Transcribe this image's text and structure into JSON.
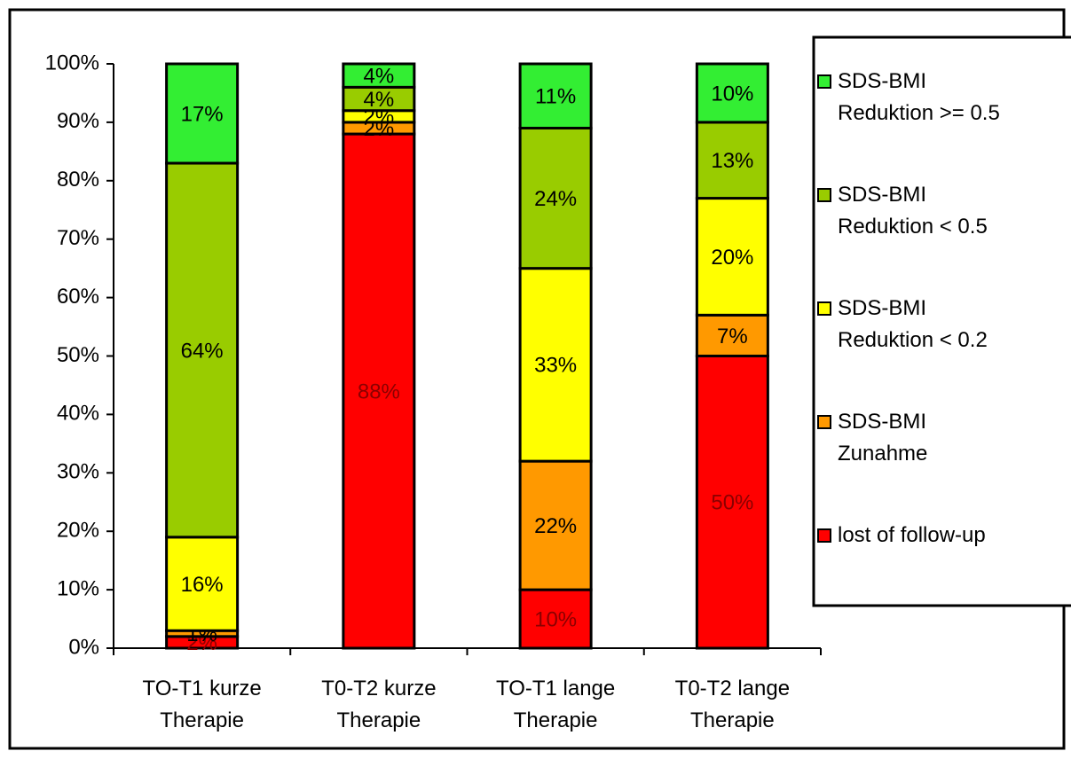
{
  "chart_data": {
    "type": "stacked_bar",
    "categories": [
      "TO-T1 kurze Therapie",
      "T0-T2 kurze Therapie",
      "TO-T1 lange Therapie",
      "T0-T2 lange Therapie"
    ],
    "series": [
      {
        "name": "lost of follow-up",
        "color": "#ff0000",
        "label_color": "#8b0000",
        "values": [
          2,
          88,
          10,
          50
        ],
        "value_labels": [
          "2%",
          "88%",
          "10%",
          "50%"
        ]
      },
      {
        "name": "SDS-BMI Zunahme",
        "color": "#ff9900",
        "label_color": "#000000",
        "values": [
          1,
          2,
          22,
          7
        ],
        "value_labels": [
          "1%",
          "2%",
          "22%",
          "7%"
        ]
      },
      {
        "name": "SDS-BMI Reduktion < 0.2",
        "color": "#ffff00",
        "label_color": "#000000",
        "values": [
          16,
          2,
          33,
          20
        ],
        "value_labels": [
          "16%",
          "2%",
          "33%",
          "20%"
        ]
      },
      {
        "name": "SDS-BMI Reduktion < 0.5",
        "color": "#99cc00",
        "label_color": "#000000",
        "values": [
          64,
          4,
          24,
          13
        ],
        "value_labels": [
          "64%",
          "4%",
          "24%",
          "13%"
        ]
      },
      {
        "name": "SDS-BMI Reduktion >= 0.5",
        "color": "#33ee33",
        "label_color": "#000000",
        "values": [
          17,
          4,
          11,
          10
        ],
        "value_labels": [
          "17%",
          "4%",
          "11%",
          "10%"
        ]
      }
    ],
    "ylim": [
      0,
      100
    ],
    "yticks": [
      {
        "value": 0,
        "label": "0%"
      },
      {
        "value": 10,
        "label": "10%"
      },
      {
        "value": 20,
        "label": "20%"
      },
      {
        "value": 30,
        "label": "30%"
      },
      {
        "value": 40,
        "label": "40%"
      },
      {
        "value": 50,
        "label": "50%"
      },
      {
        "value": 60,
        "label": "60%"
      },
      {
        "value": 70,
        "label": "70%"
      },
      {
        "value": 80,
        "label": "80%"
      },
      {
        "value": 90,
        "label": "90%"
      },
      {
        "value": 100,
        "label": "100%"
      }
    ],
    "legend": "right"
  }
}
